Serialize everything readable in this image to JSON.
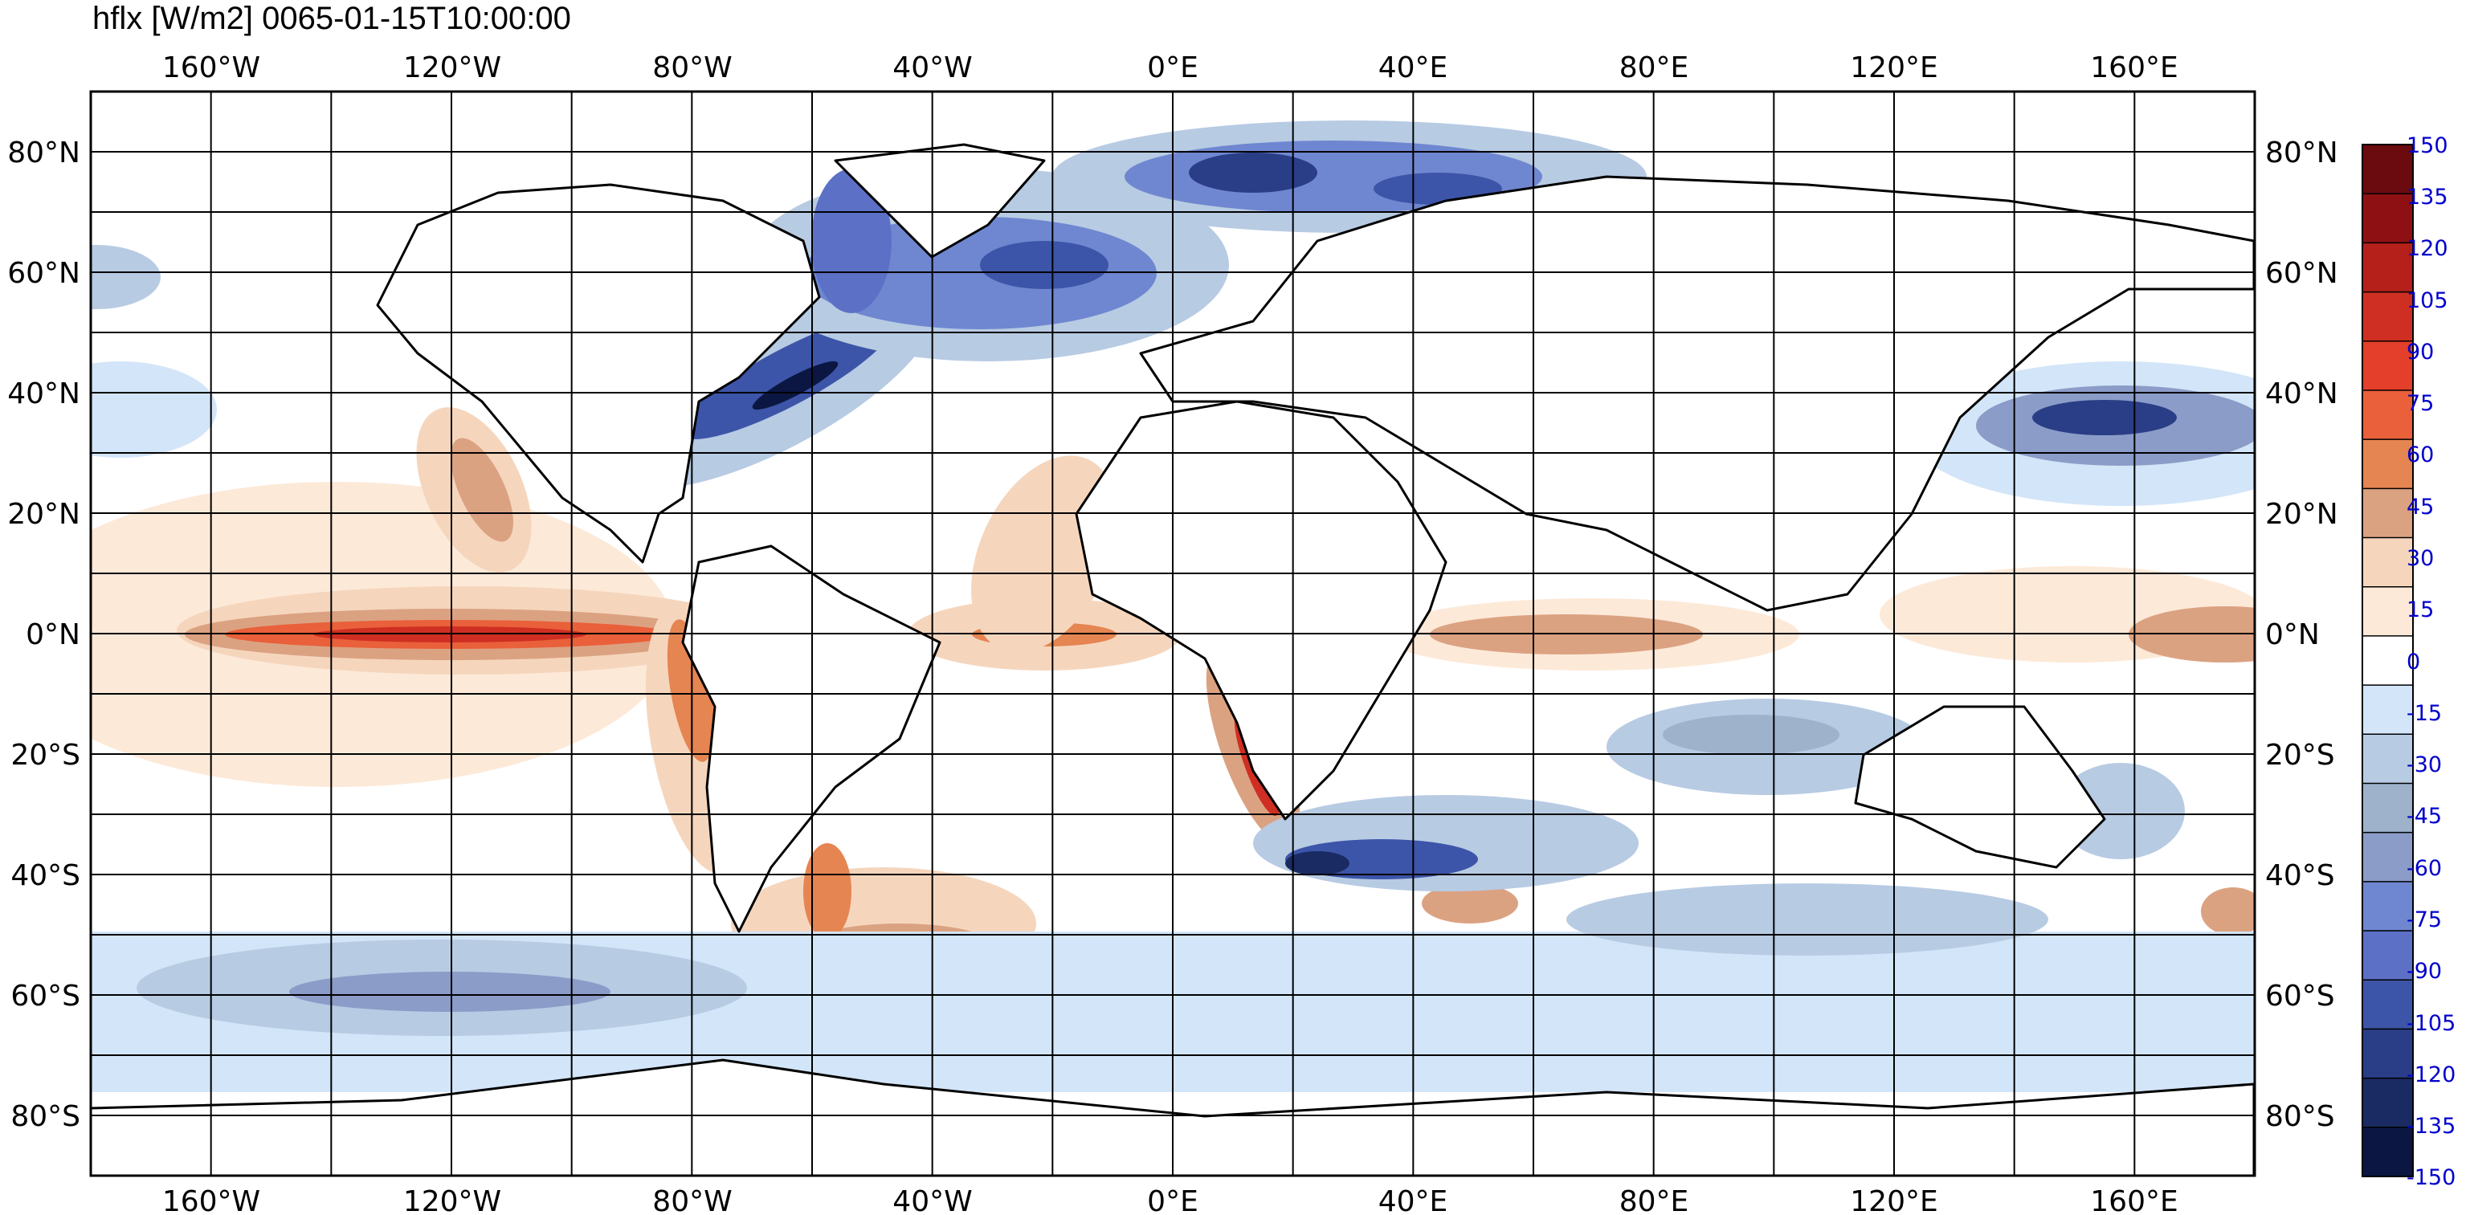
{
  "title": "hflx [W/m2]  0065-01-15T10:00:00",
  "lon_labels": [
    "160°W",
    "120°W",
    "80°W",
    "40°W",
    "0°E",
    "40°E",
    "80°E",
    "120°E",
    "160°E"
  ],
  "lat_labels": [
    "80°N",
    "60°N",
    "40°N",
    "20°N",
    "0°N",
    "20°S",
    "40°S",
    "60°S",
    "80°S"
  ],
  "colorbar": {
    "ticks": [
      "150",
      "135",
      "120",
      "105",
      "90",
      "75",
      "60",
      "45",
      "30",
      "15",
      "0",
      "-15",
      "-30",
      "-45",
      "-60",
      "-75",
      "-90",
      "-105",
      "-120",
      "-135",
      "-150"
    ],
    "colors": [
      "#6b0a0f",
      "#8e1013",
      "#b5201a",
      "#cf2f22",
      "#e43f2a",
      "#e9603a",
      "#e58552",
      "#dba282",
      "#f5d6bd",
      "#fde9d8",
      "#ffffff",
      "#d3e5f8",
      "#b7cbe3",
      "#9fb2cc",
      "#8b9cc8",
      "#6f87d0",
      "#5c70c5",
      "#3d55a8",
      "#293e86",
      "#192b62",
      "#0b1742"
    ],
    "tick_color": "#0000cc"
  },
  "map": {
    "projection": "equirectangular",
    "lon_range": [
      -180,
      180
    ],
    "lat_range": [
      -90,
      90
    ],
    "grid_lon_step": 20,
    "grid_lat_step": 10
  }
}
